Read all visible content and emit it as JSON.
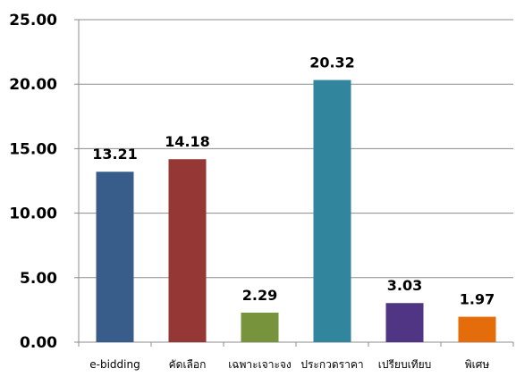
{
  "chart_data": {
    "type": "bar",
    "categories": [
      "e-bidding",
      "คัดเลือก",
      "เฉพาะเจาะจง",
      "ประกวดราคา",
      "เปรียบเทียบ",
      "พิเศษ"
    ],
    "values": [
      13.21,
      14.18,
      2.29,
      20.32,
      3.03,
      1.97
    ],
    "value_labels": [
      "13.21",
      "14.18",
      "2.29",
      "20.32",
      "3.03",
      "1.97"
    ],
    "colors": [
      "#385D8A",
      "#953735",
      "#77933C",
      "#31859C",
      "#4F3584",
      "#E46C0A"
    ],
    "yticks": [
      "0.00",
      "5.00",
      "10.00",
      "15.00",
      "20.00",
      "25.00"
    ],
    "ylim": [
      0,
      25
    ],
    "grid": true,
    "legend": "none",
    "title": "",
    "xlabel": "",
    "ylabel": ""
  }
}
